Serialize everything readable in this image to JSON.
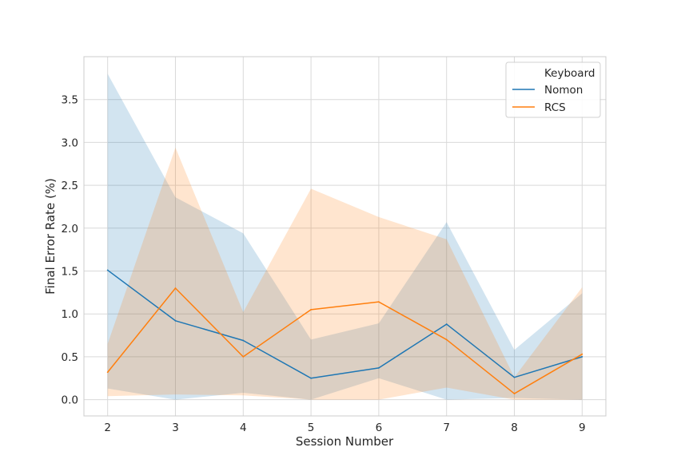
{
  "chart_data": {
    "type": "line",
    "xlabel": "Session Number",
    "ylabel": "Final Error Rate (%)",
    "x": [
      2,
      3,
      4,
      5,
      6,
      7,
      8,
      9
    ],
    "xlim": [
      1.65,
      9.35
    ],
    "ylim": [
      -0.19,
      4.0
    ],
    "yticks": [
      0.0,
      0.5,
      1.0,
      1.5,
      2.0,
      2.5,
      3.0,
      3.5
    ],
    "ytick_labels": [
      "0.0",
      "0.5",
      "1.0",
      "1.5",
      "2.0",
      "2.5",
      "3.0",
      "3.5"
    ],
    "xticks": [
      2,
      3,
      4,
      5,
      6,
      7,
      8,
      9
    ],
    "xtick_labels": [
      "2",
      "3",
      "4",
      "5",
      "6",
      "7",
      "8",
      "9"
    ],
    "grid": true,
    "legend": {
      "title": "Keyboard",
      "placement": "top-right"
    },
    "series": [
      {
        "name": "Nomon",
        "color": "#1f77b4",
        "values": [
          1.51,
          0.92,
          0.69,
          0.25,
          0.37,
          0.88,
          0.26,
          0.5
        ],
        "ci_low": [
          0.13,
          0.0,
          0.08,
          0.0,
          0.25,
          0.0,
          0.02,
          0.0
        ],
        "ci_high": [
          3.8,
          2.36,
          1.94,
          0.7,
          0.89,
          2.07,
          0.58,
          1.24
        ]
      },
      {
        "name": "RCS",
        "color": "#ff7f0e",
        "values": [
          0.32,
          1.3,
          0.5,
          1.05,
          1.14,
          0.7,
          0.07,
          0.53
        ],
        "ci_low": [
          0.04,
          0.06,
          0.05,
          0.0,
          0.0,
          0.14,
          0.0,
          0.0
        ],
        "ci_high": [
          0.65,
          2.94,
          1.02,
          2.46,
          2.13,
          1.87,
          0.26,
          1.31
        ]
      }
    ]
  }
}
